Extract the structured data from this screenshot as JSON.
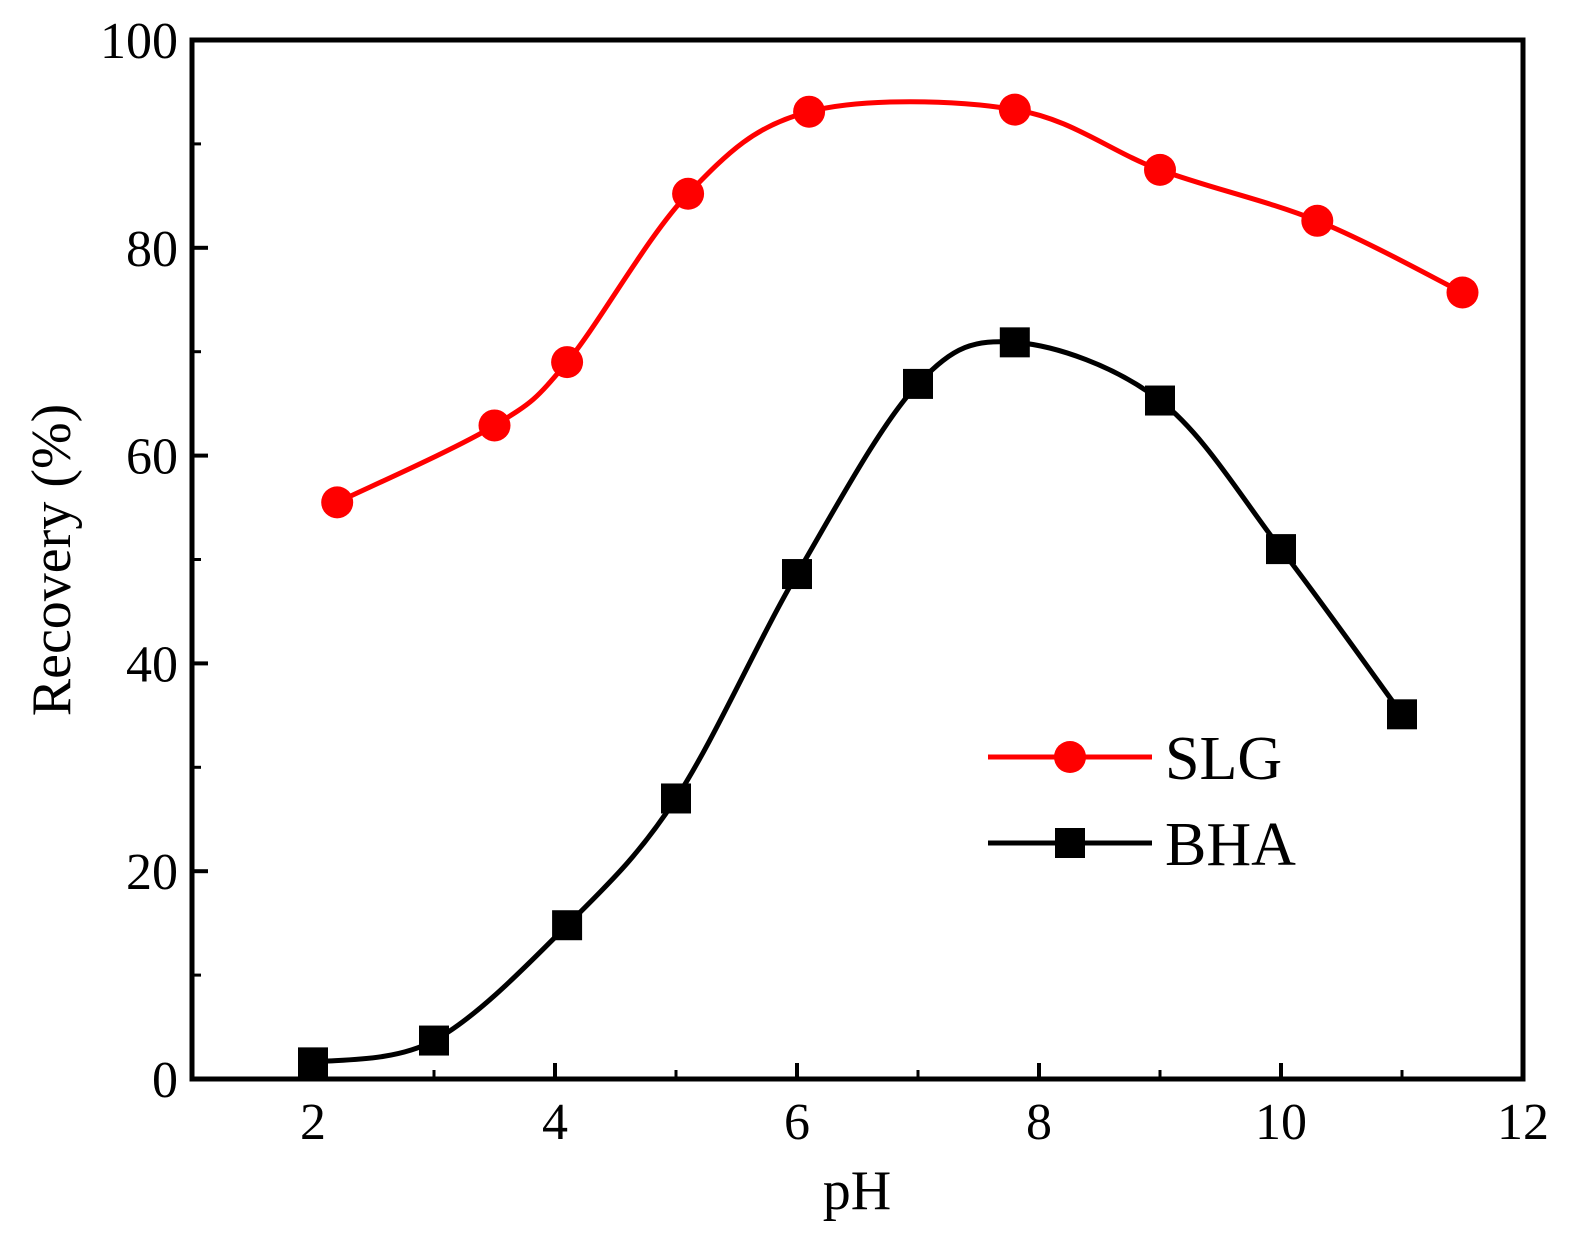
{
  "chart_data": {
    "type": "line",
    "title": "",
    "xlabel": "pH",
    "ylabel": "Recovery (%)",
    "xlim": [
      1,
      12
    ],
    "ylim": [
      0,
      100
    ],
    "xticks": [
      2,
      4,
      6,
      8,
      10,
      12
    ],
    "xtick_labels": [
      "2",
      "4",
      "6",
      "8",
      "10",
      "12"
    ],
    "yticks": [
      0,
      20,
      40,
      60,
      80,
      100
    ],
    "ytick_labels": [
      "0",
      "20",
      "40",
      "60",
      "80",
      "100"
    ],
    "grid": false,
    "legend_position": "center-right",
    "series": [
      {
        "name": "SLG",
        "color": "#ff0000",
        "marker": "circle",
        "x": [
          2.2,
          3.5,
          4.1,
          5.1,
          6.1,
          7.8,
          9.0,
          10.3,
          11.5
        ],
        "y": [
          55.5,
          62.9,
          69.0,
          85.2,
          93.1,
          93.3,
          87.5,
          82.6,
          75.7
        ]
      },
      {
        "name": "BHA",
        "color": "#000000",
        "marker": "square",
        "x": [
          2.0,
          3.0,
          4.1,
          5.0,
          6.0,
          7.0,
          7.8,
          9.0,
          10.0,
          11.0
        ],
        "y": [
          1.6,
          3.7,
          14.8,
          27.0,
          48.6,
          66.9,
          70.9,
          65.3,
          51.0,
          35.1
        ]
      }
    ]
  }
}
